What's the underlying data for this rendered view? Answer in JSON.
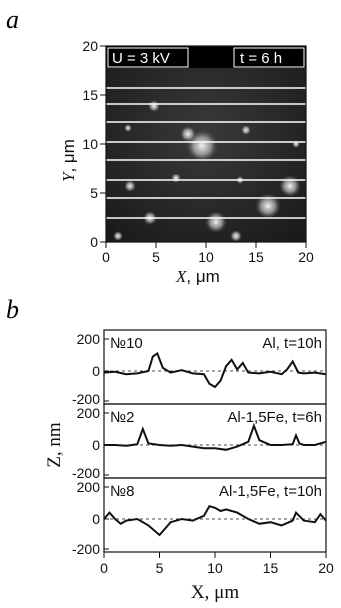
{
  "figure": {
    "panel_a_label": "a",
    "panel_b_label": "b"
  },
  "panel_a": {
    "voltage_tag": "U = 3 kV",
    "time_tag": "t = 6 h",
    "x_axis_var": "X",
    "x_axis_unit": ", μm",
    "y_axis_var": "Y",
    "y_axis_unit": ", μm",
    "x_ticks": [
      "0",
      "5",
      "10",
      "15",
      "20"
    ],
    "y_ticks": [
      "0",
      "5",
      "10",
      "15",
      "20"
    ]
  },
  "panel_b": {
    "y_axis_label": "Z, nm",
    "x_axis_label": "X, μm",
    "x_ticks": [
      "0",
      "5",
      "10",
      "15",
      "20"
    ],
    "y_ticks": [
      "200",
      "0",
      "-200"
    ],
    "profiles": [
      {
        "number": "№10",
        "sample": "Al, t=10h"
      },
      {
        "number": "№2",
        "sample": "Al-1,5Fe, t=6h"
      },
      {
        "number": "№8",
        "sample": "Al-1,5Fe, t=10h"
      }
    ]
  },
  "chart_data": [
    {
      "type": "heatmap",
      "xlabel": "X, μm",
      "ylabel": "Y, μm",
      "xlim": [
        0,
        20
      ],
      "ylim": [
        0,
        20
      ],
      "annotations": [
        "U = 3 kV",
        "t = 6 h"
      ]
    },
    {
      "type": "line",
      "xlabel": "X, μm",
      "ylabel": "Z, nm",
      "xlim": [
        0,
        20
      ],
      "ylim": [
        -200,
        200
      ],
      "series": [
        {
          "name": "№10 Al, t=10h",
          "x": [
            0,
            1,
            2,
            3,
            4,
            4.4,
            4.8,
            5.3,
            6,
            7,
            8,
            9,
            9.5,
            10,
            10.5,
            11,
            11.5,
            12,
            12.5,
            13,
            14,
            15,
            16,
            16.5,
            17,
            17.5,
            18,
            19,
            20
          ],
          "y": [
            -10,
            -5,
            -20,
            -15,
            0,
            90,
            110,
            20,
            -10,
            5,
            -15,
            -20,
            -80,
            -100,
            -60,
            30,
            70,
            10,
            50,
            -10,
            -15,
            -5,
            -20,
            10,
            60,
            -10,
            -15,
            -10,
            -20
          ]
        },
        {
          "name": "№2 Al-1,5Fe, t=6h",
          "x": [
            0,
            1,
            2,
            3,
            3.5,
            4,
            5,
            6,
            7,
            8,
            9,
            10,
            11,
            12,
            13,
            13.5,
            14,
            15,
            16,
            17,
            17.3,
            17.6,
            18,
            19,
            20
          ],
          "y": [
            0,
            0,
            -5,
            5,
            100,
            10,
            0,
            -5,
            0,
            -10,
            -20,
            -20,
            -30,
            -10,
            20,
            120,
            30,
            0,
            0,
            5,
            60,
            10,
            0,
            0,
            20
          ]
        },
        {
          "name": "№8 Al-1,5Fe, t=10h",
          "x": [
            0,
            0.5,
            1,
            1.5,
            2,
            3,
            4,
            5,
            5.5,
            6,
            7,
            8,
            9,
            9.5,
            10,
            10.5,
            11,
            12,
            13,
            14,
            15,
            16,
            17,
            17.3,
            18,
            19,
            19.5,
            20
          ],
          "y": [
            0,
            40,
            0,
            -30,
            -10,
            0,
            -40,
            -100,
            -60,
            -20,
            0,
            -10,
            20,
            80,
            70,
            50,
            60,
            40,
            0,
            -30,
            -20,
            -40,
            -10,
            40,
            -10,
            -20,
            30,
            -10
          ]
        }
      ]
    }
  ]
}
